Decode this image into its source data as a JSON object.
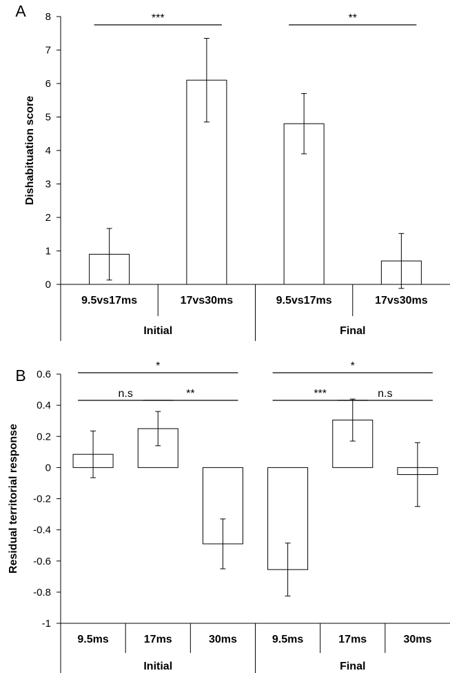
{
  "chart_data": [
    {
      "panel_label": "A",
      "type": "bar",
      "ylabel": "Dishabituation score",
      "ylim": [
        0,
        8
      ],
      "yticks": [
        0,
        1,
        2,
        3,
        4,
        5,
        6,
        7,
        8
      ],
      "categories": [
        "9.5vs17ms",
        "17vs30ms",
        "9.5vs17ms",
        "17vs30ms"
      ],
      "groups": [
        {
          "label": "Initial",
          "categories": [
            0,
            1
          ]
        },
        {
          "label": "Final",
          "categories": [
            2,
            3
          ]
        }
      ],
      "values": [
        0.9,
        6.1,
        4.8,
        0.7
      ],
      "errors": [
        0.77,
        1.25,
        0.9,
        0.82
      ],
      "significance": [
        {
          "from": 0,
          "to": 1,
          "label": "***"
        },
        {
          "from": 2,
          "to": 3,
          "label": "**"
        }
      ]
    },
    {
      "panel_label": "B",
      "type": "bar",
      "ylabel": "Residual territorial response",
      "ylim": [
        -1,
        0.6
      ],
      "yticks": [
        "-1",
        "-0.8",
        "-0.6",
        "-0.4",
        "-0.2",
        "0",
        "0.2",
        "0.4",
        "0.6"
      ],
      "categories": [
        "9.5ms",
        "17ms",
        "30ms",
        "9.5ms",
        "17ms",
        "30ms"
      ],
      "groups": [
        {
          "label": "Initial",
          "categories": [
            0,
            1,
            2
          ]
        },
        {
          "label": "Final",
          "categories": [
            3,
            4,
            5
          ]
        }
      ],
      "values": [
        0.085,
        0.25,
        -0.49,
        -0.655,
        0.305,
        -0.045
      ],
      "errors": [
        0.15,
        0.11,
        0.16,
        0.17,
        0.135,
        0.205
      ],
      "significance": [
        {
          "from": 0,
          "to": 2,
          "label": "*"
        },
        {
          "from": 0,
          "to": 1,
          "label": "n.s"
        },
        {
          "from": 1,
          "to": 2,
          "label": "**"
        },
        {
          "from": 3,
          "to": 5,
          "label": "*"
        },
        {
          "from": 3,
          "to": 4,
          "label": "***"
        },
        {
          "from": 4,
          "to": 5,
          "label": "n.s"
        }
      ]
    }
  ]
}
